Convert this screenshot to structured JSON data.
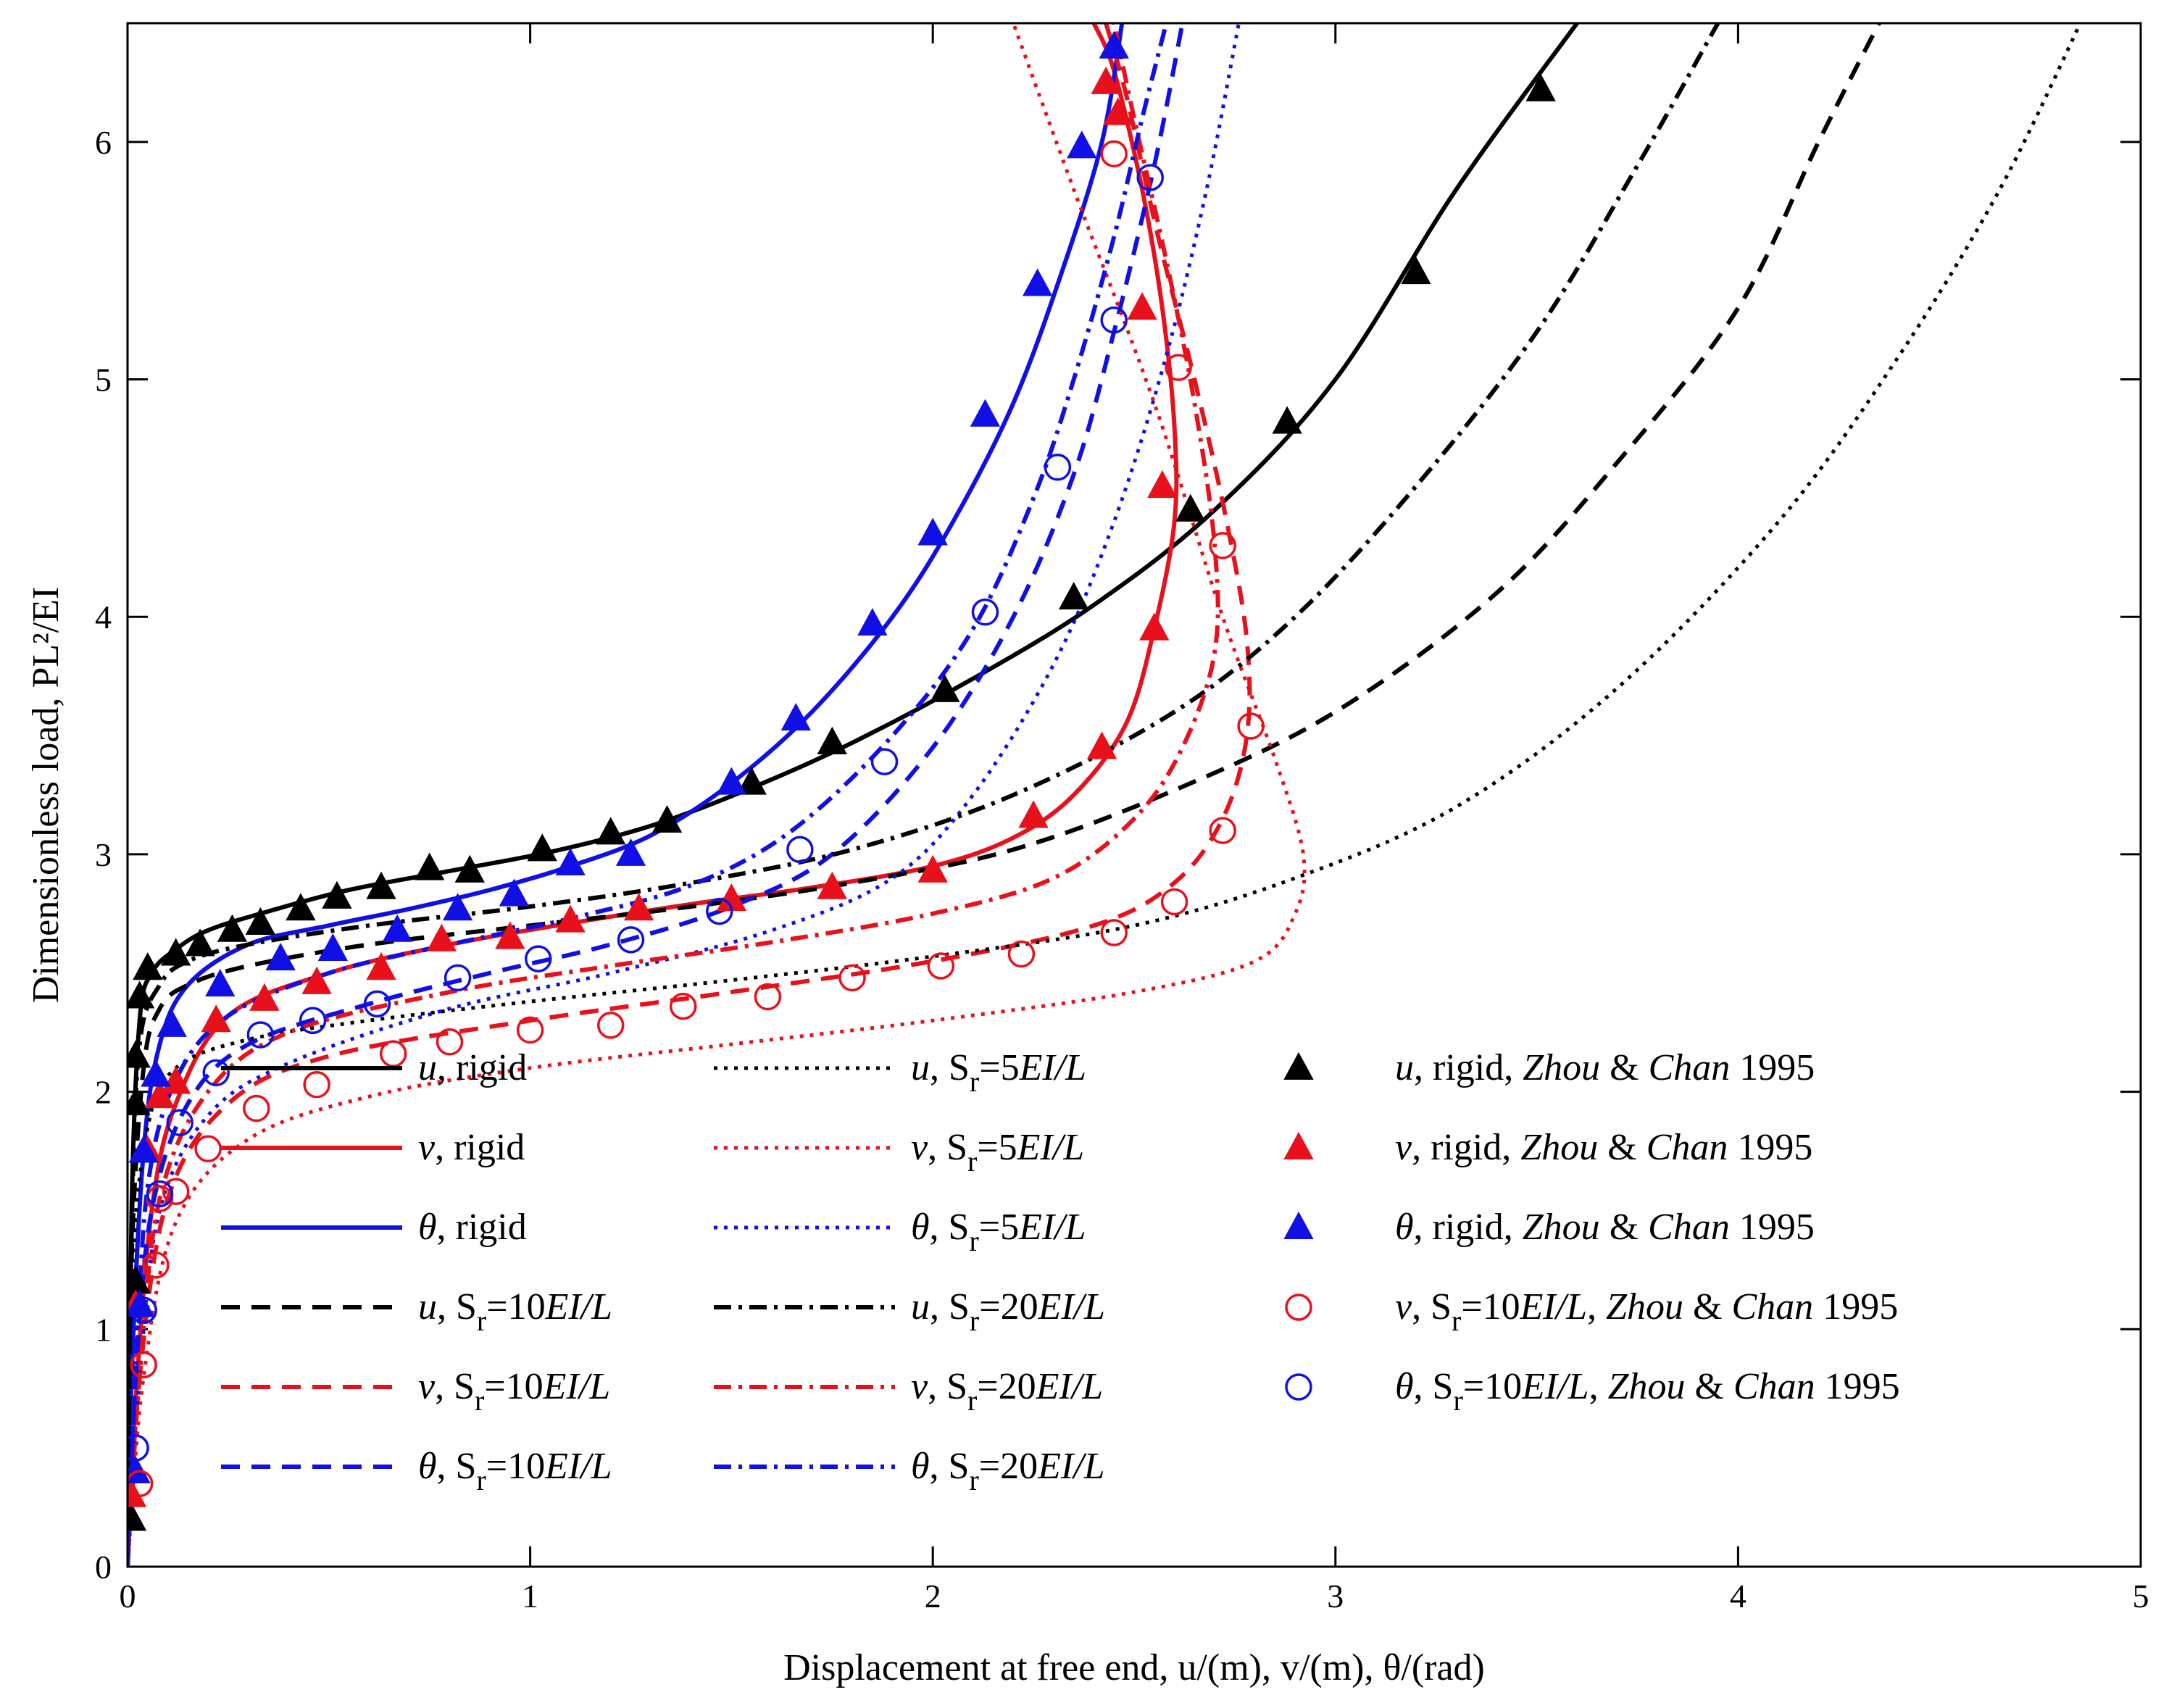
{
  "chart_data": {
    "type": "line",
    "xlabel": "Displacement at free end, u/(m), v/(m), θ/(rad)",
    "ylabel": "Dimensionless load, PL²/EI",
    "xlim": [
      0,
      5
    ],
    "ylim": [
      0,
      6.5
    ],
    "xticks": [
      "0",
      "1",
      "2",
      "3",
      "4",
      "5"
    ],
    "yticks": [
      "0",
      "1",
      "2",
      "3",
      "4",
      "5",
      "6"
    ],
    "colors": {
      "black": "#000000",
      "red": "#e8111b",
      "blue": "#1010e6"
    },
    "series": [
      {
        "name": "u, rigid",
        "legend": [
          "u",
          ", rigid"
        ],
        "color": "black",
        "style": "solid",
        "x": [
          0,
          0.01,
          0.03,
          0.06,
          0.12,
          0.2,
          0.35,
          0.55,
          0.8,
          1.05,
          1.3,
          1.55,
          1.8,
          2.1,
          2.4,
          2.7,
          3.0,
          3.3,
          3.6
        ],
        "y": [
          0,
          1.5,
          2.3,
          2.5,
          2.6,
          2.68,
          2.76,
          2.85,
          2.93,
          3.01,
          3.12,
          3.28,
          3.47,
          3.74,
          4.05,
          4.45,
          5.0,
          5.8,
          6.5
        ]
      },
      {
        "name": "v, rigid",
        "legend": [
          "v",
          ", rigid"
        ],
        "color": "red",
        "style": "solid",
        "x": [
          0,
          0.02,
          0.06,
          0.12,
          0.25,
          0.5,
          0.8,
          1.1,
          1.4,
          1.7,
          2.0,
          2.2,
          2.35,
          2.48,
          2.55,
          2.6,
          2.6,
          2.57,
          2.52,
          2.45,
          2.4
        ],
        "y": [
          0,
          0.7,
          1.5,
          1.95,
          2.32,
          2.5,
          2.62,
          2.71,
          2.79,
          2.86,
          2.95,
          3.07,
          3.25,
          3.55,
          3.95,
          4.4,
          4.8,
          5.3,
          5.8,
          6.3,
          6.5
        ]
      },
      {
        "name": "θ, rigid",
        "legend": [
          "θ",
          ", rigid"
        ],
        "color": "blue",
        "style": "solid",
        "x": [
          0,
          0.01,
          0.04,
          0.08,
          0.15,
          0.3,
          0.5,
          0.7,
          0.9,
          1.1,
          1.3,
          1.5,
          1.7,
          1.9,
          2.05,
          2.2,
          2.32,
          2.42,
          2.47
        ],
        "y": [
          0,
          0.8,
          1.75,
          2.2,
          2.45,
          2.62,
          2.7,
          2.77,
          2.85,
          2.95,
          3.08,
          3.3,
          3.6,
          4.0,
          4.4,
          4.9,
          5.45,
          6.0,
          6.5
        ]
      },
      {
        "name": "u, Sr=10EI/L",
        "legend": [
          "u",
          ", S",
          "r",
          "=10",
          "EI/L"
        ],
        "color": "black",
        "style": "dashed",
        "x": [
          0,
          0.01,
          0.04,
          0.08,
          0.15,
          0.3,
          0.6,
          1.0,
          1.4,
          1.8,
          2.2,
          2.6,
          3.0,
          3.4,
          3.7,
          4.0,
          4.2,
          4.35
        ],
        "y": [
          0,
          1.3,
          2.1,
          2.35,
          2.45,
          2.53,
          2.62,
          2.7,
          2.78,
          2.88,
          3.02,
          3.27,
          3.6,
          4.1,
          4.65,
          5.3,
          6.0,
          6.5
        ]
      },
      {
        "name": "v, Sr=10EI/L",
        "legend": [
          "v",
          ", S",
          "r",
          "=10",
          "EI/L"
        ],
        "color": "red",
        "style": "dashed",
        "x": [
          0,
          0.03,
          0.1,
          0.25,
          0.5,
          1.0,
          1.5,
          2.0,
          2.4,
          2.6,
          2.72,
          2.78,
          2.78,
          2.73,
          2.65,
          2.56,
          2.48,
          2.43
        ],
        "y": [
          0,
          0.8,
          1.55,
          1.95,
          2.15,
          2.3,
          2.42,
          2.55,
          2.7,
          2.88,
          3.15,
          3.5,
          3.9,
          4.4,
          5.0,
          5.6,
          6.2,
          6.5
        ]
      },
      {
        "name": "θ, Sr=10EI/L",
        "legend": [
          "θ",
          ", S",
          "r",
          "=10",
          "EI/L"
        ],
        "color": "blue",
        "style": "dashed",
        "x": [
          0,
          0.02,
          0.06,
          0.15,
          0.3,
          0.6,
          0.9,
          1.2,
          1.5,
          1.75,
          2.0,
          2.2,
          2.35,
          2.45,
          2.55,
          2.62
        ],
        "y": [
          0,
          0.8,
          1.5,
          1.95,
          2.2,
          2.37,
          2.5,
          2.62,
          2.78,
          3.0,
          3.45,
          4.0,
          4.6,
          5.2,
          5.9,
          6.5
        ]
      },
      {
        "name": "u, Sr=5EI/L",
        "legend": [
          "u",
          ", S",
          "r",
          "=5",
          "EI/L"
        ],
        "color": "black",
        "style": "dotted",
        "x": [
          0,
          0.01,
          0.05,
          0.12,
          0.3,
          0.6,
          1.0,
          1.5,
          2.0,
          2.5,
          2.9,
          3.3,
          3.7,
          4.1,
          4.4,
          4.65,
          4.85
        ],
        "y": [
          0,
          1.2,
          1.85,
          2.1,
          2.22,
          2.3,
          2.38,
          2.47,
          2.57,
          2.7,
          2.9,
          3.2,
          3.7,
          4.4,
          5.1,
          5.8,
          6.5
        ]
      },
      {
        "name": "v, Sr=5EI/L",
        "legend": [
          "v",
          ", S",
          "r",
          "=5",
          "EI/L"
        ],
        "color": "red",
        "style": "dotted",
        "x": [
          0,
          0.04,
          0.12,
          0.3,
          0.6,
          1.0,
          1.5,
          2.0,
          2.5,
          2.8,
          2.9,
          2.92,
          2.85,
          2.72,
          2.55,
          2.35,
          2.2
        ],
        "y": [
          0,
          0.8,
          1.45,
          1.8,
          1.98,
          2.1,
          2.2,
          2.3,
          2.42,
          2.55,
          2.75,
          3.0,
          3.4,
          4.0,
          4.9,
          5.8,
          6.5
        ]
      },
      {
        "name": "θ, Sr=5EI/L",
        "legend": [
          "θ",
          ", S",
          "r",
          "=5",
          "EI/L"
        ],
        "color": "blue",
        "style": "dotted",
        "x": [
          0,
          0.03,
          0.08,
          0.2,
          0.4,
          0.8,
          1.2,
          1.6,
          1.9,
          2.1,
          2.3,
          2.45,
          2.58,
          2.68,
          2.76
        ],
        "y": [
          0,
          0.8,
          1.5,
          1.9,
          2.12,
          2.35,
          2.5,
          2.68,
          2.9,
          3.25,
          3.8,
          4.4,
          5.1,
          5.8,
          6.5
        ]
      },
      {
        "name": "u, Sr=20EI/L",
        "legend": [
          "u",
          ", S",
          "r",
          "=20",
          "EI/L"
        ],
        "color": "black",
        "style": "dashdot",
        "x": [
          0,
          0.01,
          0.03,
          0.08,
          0.15,
          0.3,
          0.6,
          1.0,
          1.4,
          1.8,
          2.2,
          2.6,
          2.9,
          3.2,
          3.5,
          3.75,
          3.95
        ],
        "y": [
          0,
          1.4,
          2.2,
          2.45,
          2.55,
          2.62,
          2.7,
          2.78,
          2.88,
          3.02,
          3.25,
          3.6,
          4.0,
          4.55,
          5.2,
          5.9,
          6.5
        ]
      },
      {
        "name": "v, Sr=20EI/L",
        "legend": [
          "v",
          ", S",
          "r",
          "=20",
          "EI/L"
        ],
        "color": "red",
        "style": "dashdot",
        "x": [
          0,
          0.03,
          0.08,
          0.2,
          0.4,
          0.8,
          1.2,
          1.6,
          2.0,
          2.3,
          2.5,
          2.62,
          2.7,
          2.7,
          2.65,
          2.58,
          2.5,
          2.45
        ],
        "y": [
          0,
          0.8,
          1.55,
          2.0,
          2.25,
          2.42,
          2.53,
          2.63,
          2.75,
          2.9,
          3.15,
          3.45,
          3.85,
          4.3,
          4.9,
          5.5,
          6.1,
          6.5
        ]
      },
      {
        "name": "θ, Sr=20EI/L",
        "legend": [
          "θ",
          ", S",
          "r",
          "=20",
          "EI/L"
        ],
        "color": "blue",
        "style": "dashdot",
        "x": [
          0,
          0.02,
          0.05,
          0.12,
          0.25,
          0.5,
          0.8,
          1.1,
          1.4,
          1.65,
          1.9,
          2.1,
          2.25,
          2.35,
          2.45,
          2.52,
          2.58
        ],
        "y": [
          0,
          0.8,
          1.6,
          2.05,
          2.32,
          2.5,
          2.62,
          2.73,
          2.87,
          3.1,
          3.5,
          3.95,
          4.5,
          5.0,
          5.6,
          6.1,
          6.5
        ]
      }
    ],
    "markers": [
      {
        "name": "u, rigid, Zhou & Chan 1995",
        "legend": [
          "u",
          ", rigid, ",
          "Zhou",
          " & ",
          "Chan",
          " 1995"
        ],
        "color": "black",
        "shape": "triangle",
        "x": [
          0.01,
          0.02,
          0.02,
          0.02,
          0.03,
          0.05,
          0.12,
          0.18,
          0.26,
          0.33,
          0.43,
          0.52,
          0.63,
          0.75,
          0.85,
          1.03,
          1.2,
          1.34,
          1.55,
          1.75,
          2.03,
          2.35,
          2.64,
          2.88,
          3.2,
          3.51
        ],
        "y": [
          0.2,
          1.2,
          1.95,
          2.15,
          2.4,
          2.52,
          2.58,
          2.62,
          2.68,
          2.71,
          2.77,
          2.82,
          2.86,
          2.94,
          2.93,
          3.02,
          3.09,
          3.14,
          3.3,
          3.47,
          3.69,
          4.08,
          4.45,
          4.82,
          5.45,
          6.22
        ]
      },
      {
        "name": "v, rigid, Zhou & Chan 1995",
        "legend": [
          "v",
          ", rigid, ",
          "Zhou",
          " & ",
          "Chan",
          " 1995"
        ],
        "color": "red",
        "shape": "triangle",
        "x": [
          0.01,
          0.02,
          0.05,
          0.08,
          0.12,
          0.22,
          0.34,
          0.47,
          0.63,
          0.78,
          0.95,
          1.1,
          1.27,
          1.5,
          1.75,
          2.0,
          2.25,
          2.42,
          2.55,
          2.57,
          2.52,
          2.46,
          2.43
        ],
        "y": [
          0.3,
          1.1,
          1.75,
          1.98,
          2.04,
          2.3,
          2.39,
          2.46,
          2.52,
          2.64,
          2.65,
          2.72,
          2.77,
          2.81,
          2.86,
          2.93,
          3.16,
          3.45,
          3.95,
          4.55,
          5.3,
          6.12,
          6.25
        ]
      },
      {
        "name": "θ, rigid, Zhou & Chan 1995",
        "legend": [
          "θ",
          ", rigid, ",
          "Zhou",
          " & ",
          "Chan",
          " 1995"
        ],
        "color": "blue",
        "shape": "triangle",
        "x": [
          0.02,
          0.03,
          0.04,
          0.07,
          0.11,
          0.23,
          0.38,
          0.51,
          0.67,
          0.82,
          0.96,
          1.1,
          1.25,
          1.5,
          1.66,
          1.85,
          2.0,
          2.13,
          2.26,
          2.37,
          2.45
        ],
        "y": [
          0.4,
          1.1,
          1.75,
          2.07,
          2.28,
          2.45,
          2.56,
          2.6,
          2.68,
          2.77,
          2.83,
          2.96,
          3.0,
          3.3,
          3.57,
          3.97,
          4.35,
          4.85,
          5.4,
          5.98,
          6.4
        ]
      },
      {
        "name": "v, Sr=10EI/L, Zhou & Chan 1995",
        "legend": [
          "v",
          ", S",
          "r",
          "=10",
          "EI/L",
          ", ",
          "Zhou",
          " & ",
          "Chan",
          " 1995"
        ],
        "color": "red",
        "shape": "circle",
        "x": [
          0.03,
          0.04,
          0.07,
          0.08,
          0.12,
          0.2,
          0.32,
          0.47,
          0.66,
          0.8,
          1.0,
          1.2,
          1.38,
          1.59,
          1.8,
          2.02,
          2.22,
          2.45,
          2.6,
          2.72,
          2.79,
          2.72,
          2.61,
          2.45
        ],
        "y": [
          0.35,
          0.85,
          1.27,
          1.55,
          1.58,
          1.76,
          1.93,
          2.03,
          2.16,
          2.21,
          2.26,
          2.28,
          2.36,
          2.4,
          2.48,
          2.53,
          2.58,
          2.67,
          2.8,
          3.1,
          3.54,
          4.3,
          5.05,
          5.95
        ]
      },
      {
        "name": "θ, Sr=10EI/L, Zhou & Chan 1995",
        "legend": [
          "θ",
          ", S",
          "r",
          "=10",
          "EI/L",
          ", ",
          "Zhou",
          " & ",
          "Chan",
          " 1995"
        ],
        "color": "blue",
        "shape": "circle",
        "x": [
          0.02,
          0.04,
          0.08,
          0.13,
          0.22,
          0.33,
          0.46,
          0.62,
          0.82,
          1.02,
          1.25,
          1.47,
          1.67,
          1.88,
          2.13,
          2.31,
          2.45,
          2.54
        ],
        "y": [
          0.5,
          1.08,
          1.57,
          1.87,
          2.08,
          2.24,
          2.3,
          2.37,
          2.48,
          2.56,
          2.64,
          2.76,
          3.02,
          3.39,
          4.02,
          4.63,
          5.25,
          5.85
        ]
      }
    ]
  }
}
